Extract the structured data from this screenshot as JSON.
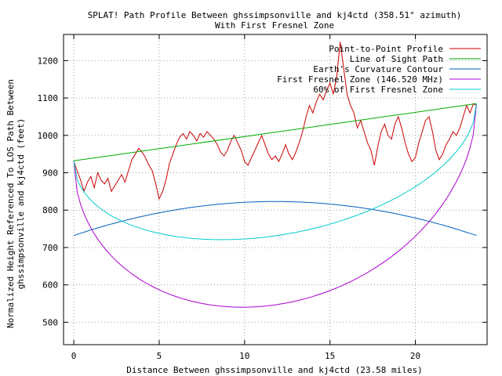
{
  "chart_data": {
    "type": "line",
    "title_line1": "SPLAT! Path Profile Between ghssimpsonville and kj4ctd (358.51° azimuth)",
    "title_line2": "With First Fresnel Zone",
    "xlabel": "Distance Between ghssimpsonville and kj4ctd (23.58 miles)",
    "ylabel_line1": "Normalized Height Referenced To LOS Path Between",
    "ylabel_line2": "ghssimpsonville and kj4ctd (feet)",
    "xlim": [
      -0.6,
      24.2
    ],
    "ylim": [
      440,
      1270
    ],
    "x_ticks": [
      0,
      5,
      10,
      15,
      20
    ],
    "y_ticks": [
      500,
      600,
      700,
      800,
      900,
      1000,
      1100,
      1200
    ],
    "grid": true,
    "legend_position": "top-right",
    "path_length_miles": 23.58,
    "series": [
      {
        "name": "Point-to-Point Profile",
        "color": "#cc0000",
        "points": [
          [
            0,
            930
          ],
          [
            0.2,
            905
          ],
          [
            0.4,
            880
          ],
          [
            0.6,
            850
          ],
          [
            0.8,
            875
          ],
          [
            1.0,
            890
          ],
          [
            1.2,
            860
          ],
          [
            1.4,
            900
          ],
          [
            1.6,
            880
          ],
          [
            1.8,
            870
          ],
          [
            2.0,
            885
          ],
          [
            2.2,
            850
          ],
          [
            2.4,
            865
          ],
          [
            2.6,
            880
          ],
          [
            2.8,
            895
          ],
          [
            3.0,
            875
          ],
          [
            3.2,
            905
          ],
          [
            3.4,
            935
          ],
          [
            3.6,
            950
          ],
          [
            3.8,
            965
          ],
          [
            4.0,
            955
          ],
          [
            4.2,
            940
          ],
          [
            4.4,
            920
          ],
          [
            4.6,
            905
          ],
          [
            4.8,
            870
          ],
          [
            5.0,
            830
          ],
          [
            5.2,
            850
          ],
          [
            5.4,
            880
          ],
          [
            5.6,
            925
          ],
          [
            5.8,
            950
          ],
          [
            6.0,
            975
          ],
          [
            6.2,
            995
          ],
          [
            6.4,
            1005
          ],
          [
            6.6,
            990
          ],
          [
            6.8,
            1010
          ],
          [
            7.0,
            1000
          ],
          [
            7.2,
            985
          ],
          [
            7.4,
            1005
          ],
          [
            7.6,
            995
          ],
          [
            7.8,
            1010
          ],
          [
            8.0,
            1000
          ],
          [
            8.2,
            990
          ],
          [
            8.4,
            975
          ],
          [
            8.6,
            955
          ],
          [
            8.8,
            945
          ],
          [
            9.0,
            960
          ],
          [
            9.2,
            985
          ],
          [
            9.4,
            1000
          ],
          [
            9.6,
            980
          ],
          [
            9.8,
            960
          ],
          [
            10.0,
            930
          ],
          [
            10.2,
            920
          ],
          [
            10.4,
            940
          ],
          [
            10.6,
            960
          ],
          [
            10.8,
            980
          ],
          [
            11.0,
            1000
          ],
          [
            11.2,
            975
          ],
          [
            11.4,
            950
          ],
          [
            11.6,
            935
          ],
          [
            11.8,
            945
          ],
          [
            12.0,
            930
          ],
          [
            12.2,
            950
          ],
          [
            12.4,
            975
          ],
          [
            12.6,
            950
          ],
          [
            12.8,
            935
          ],
          [
            13.0,
            955
          ],
          [
            13.2,
            980
          ],
          [
            13.4,
            1010
          ],
          [
            13.6,
            1050
          ],
          [
            13.8,
            1080
          ],
          [
            14.0,
            1060
          ],
          [
            14.2,
            1090
          ],
          [
            14.4,
            1110
          ],
          [
            14.6,
            1095
          ],
          [
            14.8,
            1120
          ],
          [
            15.0,
            1140
          ],
          [
            15.2,
            1110
          ],
          [
            15.4,
            1160
          ],
          [
            15.6,
            1250
          ],
          [
            15.8,
            1180
          ],
          [
            16.0,
            1110
          ],
          [
            16.2,
            1080
          ],
          [
            16.4,
            1060
          ],
          [
            16.6,
            1020
          ],
          [
            16.8,
            1040
          ],
          [
            17.0,
            1010
          ],
          [
            17.2,
            980
          ],
          [
            17.4,
            960
          ],
          [
            17.6,
            920
          ],
          [
            17.8,
            970
          ],
          [
            18.0,
            1010
          ],
          [
            18.2,
            1030
          ],
          [
            18.4,
            1000
          ],
          [
            18.6,
            990
          ],
          [
            18.8,
            1030
          ],
          [
            19.0,
            1050
          ],
          [
            19.2,
            1020
          ],
          [
            19.4,
            980
          ],
          [
            19.6,
            950
          ],
          [
            19.8,
            930
          ],
          [
            20.0,
            940
          ],
          [
            20.2,
            980
          ],
          [
            20.4,
            1010
          ],
          [
            20.6,
            1040
          ],
          [
            20.8,
            1050
          ],
          [
            21.0,
            1010
          ],
          [
            21.2,
            960
          ],
          [
            21.4,
            935
          ],
          [
            21.6,
            950
          ],
          [
            21.8,
            975
          ],
          [
            22.0,
            990
          ],
          [
            22.2,
            1010
          ],
          [
            22.4,
            1000
          ],
          [
            22.6,
            1020
          ],
          [
            22.8,
            1050
          ],
          [
            23.0,
            1080
          ],
          [
            23.2,
            1060
          ],
          [
            23.4,
            1085
          ],
          [
            23.58,
            1080
          ]
        ]
      },
      {
        "name": "Line of Sight Path",
        "color": "#00aa00",
        "points": [
          [
            0,
            932
          ],
          [
            23.58,
            1085
          ]
        ]
      },
      {
        "name": "Earth's Curvature Contour",
        "color": "#0060c0",
        "function": "curvature",
        "edge_value": 732,
        "center_value": 823
      },
      {
        "name": "First Fresnel Zone (146.520 MHz)",
        "color": "#aa00cc",
        "function": "fresnel",
        "fraction": 1.0,
        "max_radius": 462
      },
      {
        "name": "60% of First Fresnel Zone",
        "color": "#00cccc",
        "function": "fresnel",
        "fraction": 0.6,
        "max_radius": 462
      }
    ]
  }
}
